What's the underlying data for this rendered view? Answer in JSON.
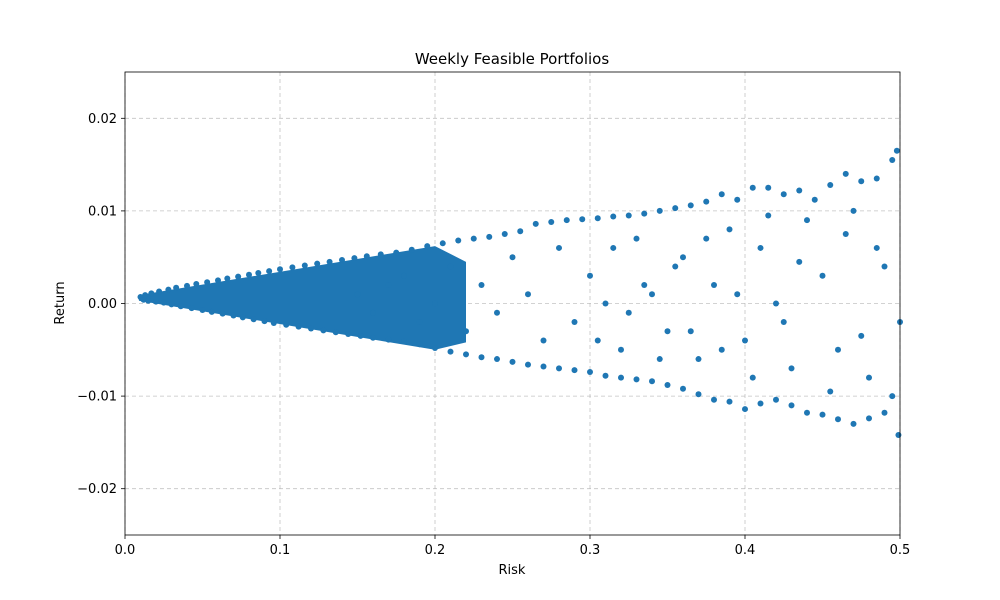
{
  "chart_data": {
    "type": "scatter",
    "title": "Weekly Feasible Portfolios",
    "xlabel": "Risk",
    "ylabel": "Return",
    "xlim": [
      0.0,
      0.5
    ],
    "ylim": [
      -0.025,
      0.025
    ],
    "xticks": [
      0.0,
      0.1,
      0.2,
      0.3,
      0.4,
      0.5
    ],
    "xtick_labels": [
      "0.0",
      "0.1",
      "0.2",
      "0.3",
      "0.4",
      "0.5"
    ],
    "yticks": [
      -0.02,
      -0.01,
      0.0,
      0.01,
      0.02
    ],
    "ytick_labels": [
      "−0.02",
      "−0.01",
      "0.00",
      "0.01",
      "0.02"
    ],
    "grid": true,
    "color": "#1f77b4",
    "points": [
      [
        0.01,
        0.0007
      ],
      [
        0.012,
        0.0004
      ],
      [
        0.013,
        0.0009
      ],
      [
        0.015,
        0.0003
      ],
      [
        0.017,
        0.0011
      ],
      [
        0.02,
        0.0002
      ],
      [
        0.022,
        0.0013
      ],
      [
        0.025,
        0.0001
      ],
      [
        0.028,
        0.0015
      ],
      [
        0.03,
        -0.0001
      ],
      [
        0.033,
        0.0017
      ],
      [
        0.036,
        -0.0003
      ],
      [
        0.04,
        0.0019
      ],
      [
        0.043,
        -0.0005
      ],
      [
        0.046,
        0.0021
      ],
      [
        0.05,
        -0.0007
      ],
      [
        0.053,
        0.0023
      ],
      [
        0.056,
        -0.0009
      ],
      [
        0.06,
        0.0025
      ],
      [
        0.063,
        -0.0011
      ],
      [
        0.066,
        0.0027
      ],
      [
        0.07,
        -0.0013
      ],
      [
        0.073,
        0.0029
      ],
      [
        0.076,
        -0.0015
      ],
      [
        0.08,
        0.0031
      ],
      [
        0.083,
        -0.0017
      ],
      [
        0.086,
        0.0033
      ],
      [
        0.09,
        -0.0019
      ],
      [
        0.093,
        0.0035
      ],
      [
        0.096,
        -0.0021
      ],
      [
        0.1,
        0.0037
      ],
      [
        0.104,
        -0.0023
      ],
      [
        0.108,
        0.0039
      ],
      [
        0.112,
        -0.0025
      ],
      [
        0.116,
        0.0041
      ],
      [
        0.12,
        -0.0027
      ],
      [
        0.124,
        0.0043
      ],
      [
        0.128,
        -0.0029
      ],
      [
        0.132,
        0.0045
      ],
      [
        0.136,
        -0.0031
      ],
      [
        0.14,
        0.0047
      ],
      [
        0.144,
        -0.0033
      ],
      [
        0.148,
        0.0049
      ],
      [
        0.152,
        -0.0035
      ],
      [
        0.156,
        0.0051
      ],
      [
        0.16,
        -0.0037
      ],
      [
        0.165,
        0.0053
      ],
      [
        0.17,
        -0.0039
      ],
      [
        0.175,
        0.0055
      ],
      [
        0.18,
        -0.0041
      ],
      [
        0.185,
        0.0058
      ],
      [
        0.19,
        -0.0044
      ],
      [
        0.195,
        0.0062
      ],
      [
        0.2,
        -0.0048
      ],
      [
        0.205,
        0.0065
      ],
      [
        0.21,
        -0.0052
      ],
      [
        0.215,
        0.0068
      ],
      [
        0.22,
        -0.0055
      ],
      [
        0.225,
        0.007
      ],
      [
        0.23,
        -0.0058
      ],
      [
        0.235,
        0.0072
      ],
      [
        0.24,
        -0.006
      ],
      [
        0.245,
        0.0075
      ],
      [
        0.25,
        -0.0063
      ],
      [
        0.255,
        0.0078
      ],
      [
        0.26,
        -0.0066
      ],
      [
        0.265,
        0.0086
      ],
      [
        0.27,
        -0.0068
      ],
      [
        0.275,
        0.0088
      ],
      [
        0.28,
        -0.007
      ],
      [
        0.285,
        0.009
      ],
      [
        0.29,
        -0.0072
      ],
      [
        0.295,
        0.0091
      ],
      [
        0.3,
        -0.0074
      ],
      [
        0.305,
        0.0092
      ],
      [
        0.31,
        -0.0078
      ],
      [
        0.315,
        0.0094
      ],
      [
        0.32,
        -0.008
      ],
      [
        0.325,
        0.0095
      ],
      [
        0.33,
        -0.0082
      ],
      [
        0.335,
        0.0097
      ],
      [
        0.34,
        -0.0084
      ],
      [
        0.345,
        0.01
      ],
      [
        0.35,
        -0.0088
      ],
      [
        0.355,
        0.0103
      ],
      [
        0.36,
        -0.0092
      ],
      [
        0.365,
        0.0106
      ],
      [
        0.37,
        -0.0098
      ],
      [
        0.375,
        0.011
      ],
      [
        0.38,
        -0.0104
      ],
      [
        0.385,
        0.0118
      ],
      [
        0.39,
        -0.0106
      ],
      [
        0.395,
        0.0112
      ],
      [
        0.4,
        -0.0114
      ],
      [
        0.405,
        0.0125
      ],
      [
        0.41,
        -0.0108
      ],
      [
        0.415,
        0.0125
      ],
      [
        0.42,
        -0.0104
      ],
      [
        0.425,
        0.0118
      ],
      [
        0.43,
        -0.011
      ],
      [
        0.435,
        0.0122
      ],
      [
        0.44,
        -0.0118
      ],
      [
        0.445,
        0.0112
      ],
      [
        0.45,
        -0.012
      ],
      [
        0.455,
        0.0128
      ],
      [
        0.46,
        -0.0125
      ],
      [
        0.465,
        0.014
      ],
      [
        0.47,
        -0.013
      ],
      [
        0.475,
        0.0132
      ],
      [
        0.48,
        -0.0124
      ],
      [
        0.485,
        0.0135
      ],
      [
        0.49,
        -0.0118
      ],
      [
        0.495,
        0.0155
      ],
      [
        0.498,
        0.0165
      ],
      [
        0.499,
        -0.0142
      ],
      [
        0.15,
        0.001
      ],
      [
        0.16,
        -0.001
      ],
      [
        0.17,
        0.002
      ],
      [
        0.18,
        0.003
      ],
      [
        0.19,
        -0.002
      ],
      [
        0.2,
        0.0
      ],
      [
        0.21,
        0.004
      ],
      [
        0.22,
        -0.003
      ],
      [
        0.23,
        0.002
      ],
      [
        0.24,
        -0.001
      ],
      [
        0.25,
        0.005
      ],
      [
        0.26,
        0.001
      ],
      [
        0.27,
        -0.004
      ],
      [
        0.28,
        0.006
      ],
      [
        0.29,
        -0.002
      ],
      [
        0.3,
        0.003
      ],
      [
        0.31,
        0.0
      ],
      [
        0.32,
        -0.005
      ],
      [
        0.33,
        0.007
      ],
      [
        0.34,
        0.001
      ],
      [
        0.35,
        -0.003
      ],
      [
        0.36,
        0.005
      ],
      [
        0.37,
        -0.006
      ],
      [
        0.38,
        0.002
      ],
      [
        0.39,
        0.008
      ],
      [
        0.4,
        -0.004
      ],
      [
        0.41,
        0.006
      ],
      [
        0.42,
        0.0
      ],
      [
        0.43,
        -0.007
      ],
      [
        0.44,
        0.009
      ],
      [
        0.45,
        0.003
      ],
      [
        0.46,
        -0.005
      ],
      [
        0.47,
        0.01
      ],
      [
        0.48,
        -0.008
      ],
      [
        0.49,
        0.004
      ],
      [
        0.5,
        -0.002
      ],
      [
        0.455,
        -0.0095
      ],
      [
        0.465,
        0.0075
      ],
      [
        0.475,
        -0.0035
      ],
      [
        0.485,
        0.006
      ],
      [
        0.495,
        -0.01
      ],
      [
        0.435,
        0.0045
      ],
      [
        0.425,
        -0.002
      ],
      [
        0.415,
        0.0095
      ],
      [
        0.405,
        -0.008
      ],
      [
        0.395,
        0.001
      ],
      [
        0.385,
        -0.005
      ],
      [
        0.375,
        0.007
      ],
      [
        0.365,
        -0.003
      ],
      [
        0.355,
        0.004
      ],
      [
        0.345,
        -0.006
      ],
      [
        0.335,
        0.002
      ],
      [
        0.325,
        -0.001
      ],
      [
        0.315,
        0.006
      ],
      [
        0.305,
        -0.004
      ]
    ]
  }
}
